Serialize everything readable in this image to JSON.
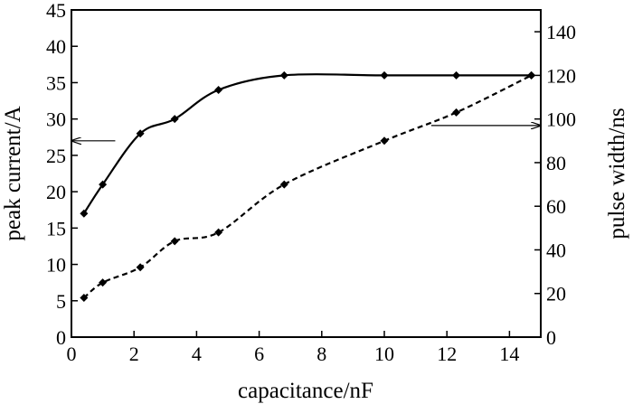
{
  "chart_data": {
    "type": "line",
    "title": "",
    "xlabel": "capacitance/nF",
    "ylabel": "peak current/A",
    "y2label": "pulse width/ns",
    "xlim": [
      0,
      15
    ],
    "ylim": [
      0,
      45
    ],
    "y2lim": [
      0,
      150
    ],
    "xticks": [
      0,
      2,
      4,
      6,
      8,
      10,
      12,
      14
    ],
    "yticks": [
      0,
      5,
      10,
      15,
      20,
      25,
      30,
      35,
      40,
      45
    ],
    "y2ticks": [
      0,
      20,
      40,
      60,
      80,
      100,
      120,
      140
    ],
    "grid": false,
    "legend": "none",
    "series": [
      {
        "axis": "left",
        "style": "solid",
        "color": "#000000",
        "x": [
          0.4,
          1.0,
          2.2,
          3.3,
          4.7,
          6.8,
          10.0,
          12.3,
          14.7
        ],
        "y": [
          17.0,
          21.0,
          28.0,
          30.0,
          34.0,
          36.0,
          36.0,
          36.0,
          36.0
        ]
      },
      {
        "axis": "right",
        "style": "dashed",
        "color": "#000000",
        "x": [
          0.4,
          1.0,
          2.2,
          3.3,
          4.7,
          6.8,
          10.0,
          12.3,
          14.7
        ],
        "y": [
          18.0,
          25.0,
          32.0,
          44.0,
          48.0,
          70.0,
          90.0,
          103.0,
          120.0
        ]
      }
    ],
    "annotations": [
      {
        "type": "arrow",
        "direction": "left",
        "target_axis": "left",
        "y": 27,
        "x_from": 1.4,
        "x_to": 0
      },
      {
        "type": "arrow",
        "direction": "right",
        "target_axis": "right",
        "y": 97,
        "x_from": 11.5,
        "x_to": 15
      }
    ]
  }
}
